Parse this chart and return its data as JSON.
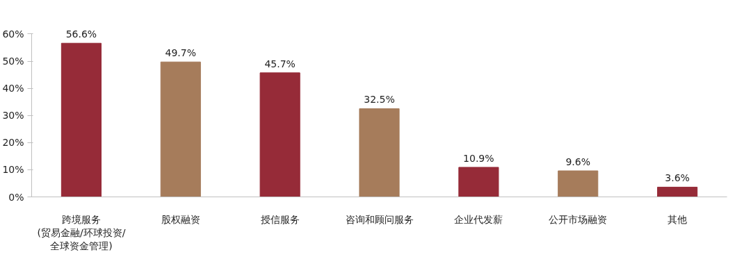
{
  "chart_data": {
    "type": "bar",
    "categories": [
      "跨境服务\n(贸易金融/环球投资/\n全球资金管理)",
      "股权融资",
      "授信服务",
      "咨询和顾问服务",
      "企业代发薪",
      "公开市场融资",
      "其他"
    ],
    "values": [
      56.6,
      49.7,
      45.7,
      32.5,
      10.9,
      9.6,
      3.6
    ],
    "colors": [
      "#962b38",
      "#a67c5b",
      "#962b38",
      "#a67c5b",
      "#962b38",
      "#a67c5b",
      "#962b38"
    ],
    "value_labels": [
      "56.6%",
      "49.7%",
      "45.7%",
      "32.5%",
      "10.9%",
      "9.6%",
      "3.6%"
    ],
    "ylim": [
      0,
      60
    ],
    "yticks": [
      {
        "value": 0,
        "label": "0%"
      },
      {
        "value": 10,
        "label": "10%"
      },
      {
        "value": 20,
        "label": "20%"
      },
      {
        "value": 30,
        "label": "30%"
      },
      {
        "value": 40,
        "label": "40%"
      },
      {
        "value": 50,
        "label": "50%"
      },
      {
        "value": 60,
        "label": "60%"
      }
    ],
    "grid": false
  }
}
